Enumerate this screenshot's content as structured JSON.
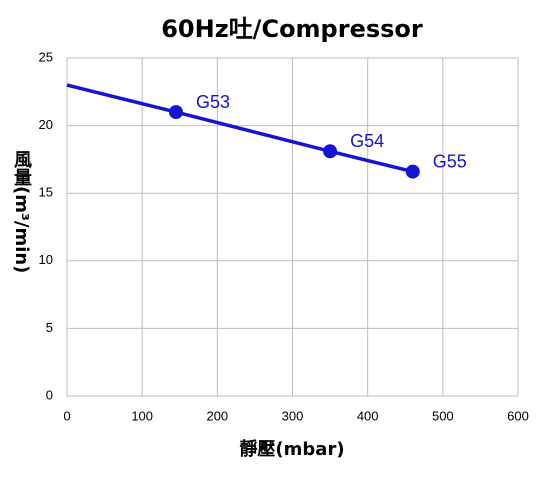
{
  "chart_data": {
    "type": "line",
    "title": "60Hz吐/Compressor",
    "x_label": "靜壓(mbar)",
    "y_label": "風量(m³/min)",
    "xlim": [
      0,
      600
    ],
    "xticks": [
      0,
      100,
      200,
      300,
      400,
      500,
      600
    ],
    "ylim": [
      0,
      25
    ],
    "yticks": [
      0,
      5,
      10,
      15,
      20,
      25
    ],
    "grid": true,
    "series": [
      {
        "color": "#1414d2",
        "x": [
          0,
          145,
          350,
          460
        ],
        "values": [
          23,
          21,
          18.1,
          16.6
        ],
        "point_labels": [
          null,
          "G53",
          "G54",
          "G55"
        ]
      }
    ]
  }
}
